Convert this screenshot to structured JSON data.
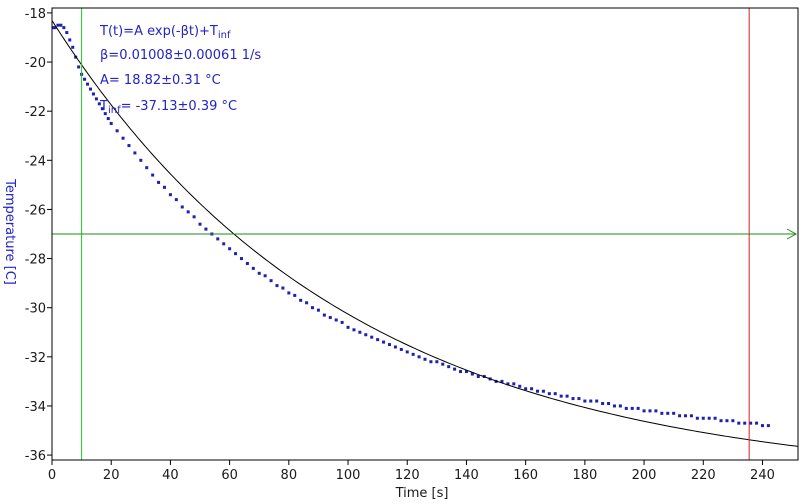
{
  "chart_data": {
    "type": "scatter",
    "title": "",
    "xlabel": "Time [s]",
    "ylabel": "Temperature [C]",
    "xlim": [
      0,
      252
    ],
    "ylim": [
      -36.2,
      -17.8
    ],
    "x_ticks": [
      0,
      20,
      40,
      60,
      80,
      100,
      120,
      140,
      160,
      180,
      200,
      220,
      240
    ],
    "y_ticks": [
      -18,
      -20,
      -22,
      -24,
      -26,
      -28,
      -30,
      -32,
      -34,
      -36
    ],
    "x_tick_labels": [
      "0",
      "20",
      "40",
      "60",
      "80",
      "100",
      "120",
      "140",
      "160",
      "180",
      "200",
      "220",
      "240"
    ],
    "y_tick_labels": [
      "-18",
      "-20",
      "-22",
      "-24",
      "-26",
      "-28",
      "-30",
      "-32",
      "-34",
      "-36"
    ],
    "grid": false,
    "annotations": {
      "line1_main": "T(t)=A exp(-βt)+T",
      "line1_sub": "inf",
      "line2": "β=0.01008±0.00061 1/s",
      "line3": "A= 18.82±0.31 °C",
      "line4_main": "T",
      "line4_sub": "inf",
      "line4_rest": "= -37.13±0.39 °C"
    },
    "fit": {
      "A": 18.82,
      "beta": 0.01008,
      "T_inf": -37.13,
      "x_range": [
        0,
        252
      ]
    },
    "reference_lines": {
      "green_vertical_x": 10,
      "red_vertical_x": 235.5,
      "green_horizontal_y": -27.0
    },
    "series": [
      {
        "x": [
          0.5,
          1,
          2,
          3,
          4,
          5,
          6,
          7,
          8,
          9,
          10,
          11,
          12,
          13,
          14,
          15,
          16,
          17,
          18,
          19,
          20,
          22,
          24,
          26,
          28,
          30,
          32,
          34,
          36,
          38,
          40,
          42,
          44,
          46,
          48,
          50,
          52,
          54,
          56,
          58,
          60,
          62,
          64,
          66,
          68,
          70,
          72,
          74,
          76,
          78,
          80,
          82,
          84,
          86,
          88,
          90,
          92,
          94,
          96,
          98,
          100,
          102,
          104,
          106,
          108,
          110,
          112,
          114,
          116,
          118,
          120,
          122,
          124,
          126,
          128,
          130,
          132,
          134,
          136,
          138,
          140,
          142,
          144,
          146,
          148,
          150,
          152,
          154,
          156,
          158,
          160,
          162,
          164,
          166,
          168,
          170,
          172,
          174,
          176,
          178,
          180,
          182,
          184,
          186,
          188,
          190,
          192,
          194,
          196,
          198,
          200,
          202,
          204,
          206,
          208,
          210,
          212,
          214,
          216,
          218,
          220,
          222,
          224,
          226,
          228,
          230,
          232,
          234,
          236,
          238,
          240,
          242
        ],
        "y": [
          -18.6,
          -18.6,
          -18.5,
          -18.5,
          -18.6,
          -18.8,
          -19.1,
          -19.4,
          -19.8,
          -20.2,
          -20.5,
          -20.7,
          -20.9,
          -21.1,
          -21.3,
          -21.5,
          -21.7,
          -21.9,
          -22.1,
          -22.3,
          -22.5,
          -22.8,
          -23.1,
          -23.4,
          -23.7,
          -24.0,
          -24.3,
          -24.6,
          -24.9,
          -25.1,
          -25.4,
          -25.6,
          -25.9,
          -26.1,
          -26.3,
          -26.6,
          -26.8,
          -27.0,
          -27.2,
          -27.4,
          -27.6,
          -27.8,
          -28.0,
          -28.2,
          -28.4,
          -28.6,
          -28.7,
          -28.9,
          -29.1,
          -29.2,
          -29.4,
          -29.5,
          -29.7,
          -29.8,
          -30.0,
          -30.1,
          -30.3,
          -30.4,
          -30.5,
          -30.6,
          -30.8,
          -30.9,
          -31.0,
          -31.1,
          -31.2,
          -31.3,
          -31.4,
          -31.5,
          -31.6,
          -31.7,
          -31.8,
          -31.9,
          -32.0,
          -32.1,
          -32.2,
          -32.2,
          -32.3,
          -32.4,
          -32.5,
          -32.6,
          -32.6,
          -32.7,
          -32.8,
          -32.8,
          -32.9,
          -33.0,
          -33.0,
          -33.1,
          -33.1,
          -33.2,
          -33.3,
          -33.3,
          -33.4,
          -33.4,
          -33.5,
          -33.5,
          -33.6,
          -33.6,
          -33.7,
          -33.7,
          -33.8,
          -33.8,
          -33.8,
          -33.9,
          -33.9,
          -34.0,
          -34.0,
          -34.1,
          -34.1,
          -34.1,
          -34.2,
          -34.2,
          -34.2,
          -34.3,
          -34.3,
          -34.3,
          -34.4,
          -34.4,
          -34.4,
          -34.5,
          -34.5,
          -34.5,
          -34.5,
          -34.6,
          -34.6,
          -34.6,
          -34.7,
          -34.7,
          -34.7,
          -34.7,
          -34.8,
          -34.8
        ],
        "color": "#1f1fb4"
      }
    ]
  },
  "colors": {
    "data": "#1f1fb4",
    "fit": "#000000",
    "green": "#1fc81f",
    "green_dark": "#1f8a1f",
    "red": "#d81f1f",
    "annotation": "#2424c8"
  }
}
